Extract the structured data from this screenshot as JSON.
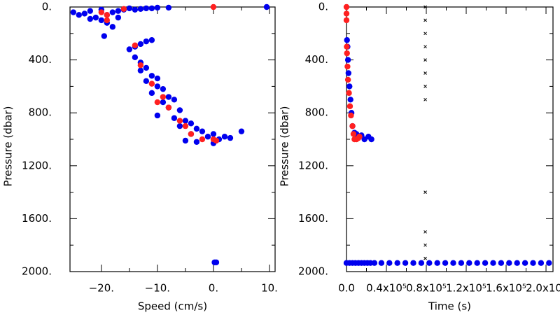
{
  "chart_data": [
    {
      "type": "scatter",
      "xlabel": "Speed (cm/s)",
      "ylabel": "Pressure (dbar)",
      "xlim": [
        -25.6,
        11
      ],
      "ylim": [
        0,
        2000
      ],
      "y_inverted": true,
      "xticks": [
        {
          "value": -20,
          "label": "−20."
        },
        {
          "value": -10,
          "label": "−10."
        },
        {
          "value": 0,
          "label": "0."
        },
        {
          "value": 10,
          "label": "10."
        }
      ],
      "yticks": [
        {
          "value": 0,
          "label": "0."
        },
        {
          "value": 400,
          "label": "400."
        },
        {
          "value": 800,
          "label": "800."
        },
        {
          "value": 1200,
          "label": "1200."
        },
        {
          "value": 1600,
          "label": "1600."
        },
        {
          "value": 2000,
          "label": "2000."
        }
      ],
      "series": [
        {
          "color": "#0000ee",
          "marker": "dot",
          "x": [
            -25,
            -24,
            -23,
            -22,
            -21,
            -20,
            -19,
            -18,
            -17,
            -16,
            -15,
            -14,
            -13,
            -12,
            -11,
            -10,
            -8,
            -20,
            -19,
            -22,
            -17,
            -18,
            -19.5,
            -14,
            -13,
            -12,
            -11,
            -15,
            -14,
            -13,
            -12,
            -13,
            -11,
            -12,
            -10,
            -10,
            -9,
            -11,
            -8,
            -9,
            -7,
            -8,
            -6,
            -10,
            -7,
            -5,
            -6,
            -4,
            -3,
            -4,
            -2,
            -1,
            0,
            1,
            2,
            3,
            5,
            -5,
            -3,
            0,
            0.2,
            0.5,
            9.5
          ],
          "values": [
            40,
            60,
            50,
            30,
            80,
            20,
            60,
            40,
            30,
            20,
            10,
            20,
            15,
            10,
            10,
            5,
            5,
            100,
            120,
            90,
            80,
            150,
            220,
            300,
            280,
            260,
            250,
            320,
            380,
            420,
            460,
            480,
            520,
            560,
            540,
            600,
            620,
            650,
            680,
            720,
            700,
            760,
            780,
            820,
            840,
            860,
            900,
            880,
            920,
            960,
            940,
            980,
            960,
            1000,
            980,
            990,
            940,
            1010,
            1020,
            1030,
            1930,
            1930,
            0
          ]
        },
        {
          "color": "#ff2020",
          "marker": "dot",
          "x": [
            -20,
            -19,
            -16,
            -19,
            0,
            -14,
            -13,
            -11,
            -9,
            -8,
            -6,
            -5,
            -4,
            -2,
            0,
            0.5,
            -10
          ],
          "values": [
            40,
            60,
            15,
            100,
            0,
            290,
            440,
            580,
            680,
            760,
            860,
            900,
            960,
            1000,
            1000,
            1010,
            720
          ]
        }
      ]
    },
    {
      "type": "scatter",
      "xlabel": "Time (s)",
      "ylabel": "Pressure (dbar)",
      "xlim": [
        0,
        207000
      ],
      "ylim": [
        0,
        2000
      ],
      "y_inverted": true,
      "xticks": [
        {
          "value": 0,
          "label": "0.0"
        },
        {
          "value": 40000,
          "label": "0.4x10⁵"
        },
        {
          "value": 80000,
          "label": "0.8x10⁵"
        },
        {
          "value": 120000,
          "label": "1.2x10⁵"
        },
        {
          "value": 160000,
          "label": "1.6x10⁵"
        },
        {
          "value": 200000,
          "label": "2.0x10⁵"
        }
      ],
      "yticks": [
        {
          "value": 0,
          "label": "0."
        },
        {
          "value": 400,
          "label": "400."
        },
        {
          "value": 800,
          "label": "800."
        },
        {
          "value": 1200,
          "label": "1200."
        },
        {
          "value": 1600,
          "label": "1600."
        },
        {
          "value": 2000,
          "label": "2000."
        }
      ],
      "series": [
        {
          "color": "#0000ee",
          "marker": "dot",
          "x": [
            500,
            1000,
            1500,
            2000,
            3000,
            4000,
            5000,
            6000,
            8000,
            10000,
            12000,
            15000,
            18000,
            22000,
            25000,
            0,
            3000,
            6000,
            9000,
            12000,
            15000,
            18000,
            21000,
            24000,
            28000,
            35000,
            43000,
            51000,
            59000,
            67000,
            75000,
            83000,
            91000,
            99000,
            107000,
            115000,
            123000,
            131000,
            139000,
            147000,
            155000,
            163000,
            171000,
            179000,
            187000,
            195000,
            203000
          ],
          "values": [
            250,
            300,
            400,
            500,
            600,
            700,
            800,
            900,
            950,
            960,
            980,
            970,
            1000,
            980,
            1000,
            1935,
            1935,
            1935,
            1935,
            1935,
            1935,
            1935,
            1935,
            1935,
            1935,
            1935,
            1935,
            1935,
            1935,
            1935,
            1935,
            1935,
            1935,
            1935,
            1935,
            1935,
            1935,
            1935,
            1935,
            1935,
            1935,
            1935,
            1935,
            1935,
            1935,
            1935,
            1935
          ]
        },
        {
          "color": "#ff2020",
          "marker": "dot",
          "x": [
            0,
            0,
            0,
            300,
            500,
            1000,
            1500,
            2500,
            3500,
            4500,
            6000,
            7000,
            8000,
            10000,
            12000,
            13000
          ],
          "values": [
            0,
            50,
            100,
            300,
            350,
            450,
            550,
            650,
            750,
            820,
            900,
            960,
            1000,
            1000,
            990,
            980
          ]
        },
        {
          "color": "#000000",
          "marker": "cross",
          "x": [
            79000,
            79000,
            79000,
            79000,
            79000,
            79000,
            79000,
            79000,
            79000,
            79000,
            79000,
            79000
          ],
          "values": [
            0,
            100,
            200,
            300,
            400,
            500,
            600,
            700,
            1400,
            1700,
            1800,
            1900
          ]
        }
      ]
    }
  ]
}
